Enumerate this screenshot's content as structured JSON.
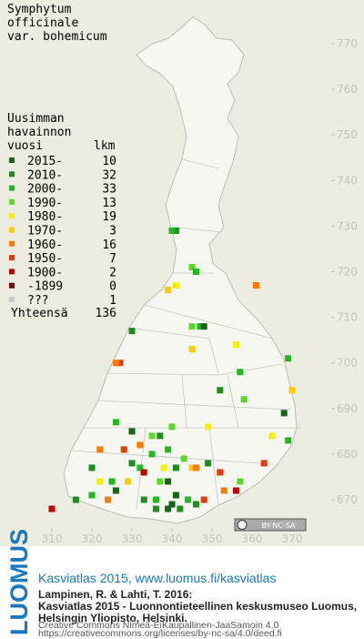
{
  "map": {
    "title": [
      "Symphytum",
      "officinale",
      "var. bohemicum"
    ],
    "legend_header": [
      "Uusimman",
      "havainnon"
    ],
    "legend_col_year": "vuosi",
    "legend_col_count": "lkm",
    "legend": [
      {
        "label": "2015-",
        "count": 10,
        "color": "#176317"
      },
      {
        "label": "2010-",
        "count": 32,
        "color": "#1e8c1e"
      },
      {
        "label": "2000-",
        "count": 33,
        "color": "#22b822"
      },
      {
        "label": "1990-",
        "count": 13,
        "color": "#5ad82a"
      },
      {
        "label": "1980-",
        "count": 19,
        "color": "#f2f200"
      },
      {
        "label": "1970-",
        "count": 3,
        "color": "#ffcc00"
      },
      {
        "label": "1960-",
        "count": 16,
        "color": "#ff7a00"
      },
      {
        "label": "1950-",
        "count": 7,
        "color": "#e83a00"
      },
      {
        "label": "1900-",
        "count": 2,
        "color": "#c00000"
      },
      {
        "label": "-1899",
        "count": 0,
        "color": "#7a0000"
      },
      {
        "label": "???",
        "count": 1,
        "color": "#cccccc"
      }
    ],
    "total_label": "Yhteensä",
    "total": 136,
    "xticks": [
      310,
      320,
      330,
      340,
      350,
      360,
      370
    ],
    "yticks": [
      770,
      760,
      750,
      740,
      730,
      720,
      710,
      700,
      690,
      680,
      670
    ],
    "xlim": [
      310,
      370
    ],
    "ylim": [
      670,
      770
    ],
    "points": [
      [
        341,
        729,
        1
      ],
      [
        340,
        729,
        2
      ],
      [
        345,
        721,
        3
      ],
      [
        346,
        720,
        2
      ],
      [
        361,
        717,
        6
      ],
      [
        341,
        717,
        4
      ],
      [
        339,
        716,
        5
      ],
      [
        330,
        707,
        1
      ],
      [
        345,
        708,
        3
      ],
      [
        347,
        708,
        2
      ],
      [
        348,
        708,
        0
      ],
      [
        356,
        704,
        4
      ],
      [
        345,
        703,
        5
      ],
      [
        327,
        700,
        7
      ],
      [
        326,
        700,
        6
      ],
      [
        357,
        698,
        2
      ],
      [
        352,
        694,
        1
      ],
      [
        358,
        692,
        3
      ],
      [
        370,
        694,
        5
      ],
      [
        369,
        701,
        2
      ],
      [
        368,
        689,
        0
      ],
      [
        369,
        683,
        2
      ],
      [
        326,
        687,
        2
      ],
      [
        330,
        685,
        0
      ],
      [
        335,
        684,
        3
      ],
      [
        340,
        686,
        3
      ],
      [
        349,
        686,
        4
      ],
      [
        322,
        681,
        6
      ],
      [
        328,
        681,
        7
      ],
      [
        332,
        682,
        6
      ],
      [
        337,
        684,
        1
      ],
      [
        339,
        681,
        2
      ],
      [
        330,
        678,
        1
      ],
      [
        332,
        677,
        2
      ],
      [
        338,
        677,
        4
      ],
      [
        341,
        677,
        1
      ],
      [
        345,
        677,
        5
      ],
      [
        346,
        677,
        6
      ],
      [
        349,
        678,
        1
      ],
      [
        352,
        676,
        7
      ],
      [
        320,
        677,
        1
      ],
      [
        325,
        674,
        2
      ],
      [
        329,
        674,
        5
      ],
      [
        333,
        676,
        8
      ],
      [
        337,
        674,
        3
      ],
      [
        339,
        674,
        0
      ],
      [
        341,
        671,
        0
      ],
      [
        340,
        669,
        0
      ],
      [
        342,
        668,
        1
      ],
      [
        344,
        670,
        2
      ],
      [
        346,
        669,
        1
      ],
      [
        348,
        670,
        7
      ],
      [
        353,
        672,
        6
      ],
      [
        356,
        672,
        8
      ],
      [
        357,
        674,
        3
      ],
      [
        363,
        678,
        7
      ],
      [
        365,
        684,
        4
      ],
      [
        324,
        670,
        6
      ],
      [
        326,
        672,
        0
      ],
      [
        316,
        670,
        1
      ],
      [
        320,
        671,
        2
      ],
      [
        310,
        668,
        8
      ],
      [
        333,
        670,
        1
      ],
      [
        336,
        670,
        2
      ],
      [
        339,
        668,
        0
      ],
      [
        336,
        668,
        1
      ],
      [
        322,
        674,
        4
      ],
      [
        335,
        680,
        2
      ],
      [
        343,
        679,
        3
      ]
    ],
    "cc_badge": "BY-NC-SA",
    "brand": "LUOMUS",
    "link": "Kasviatlas 2015, www.luomus.fi/kasviatlas",
    "reference": [
      "Lampinen, R. & Lahti, T. 2016:",
      "Kasviatlas 2015 - Luonnontieteellinen keskusmuseo Luomus,",
      "Helsingin Yliopisto, Helsinki."
    ],
    "license": [
      "Creative Commons Nimeä-EiKaupallinen-JaaSamoin 4.0",
      "https://creativecommons.org/licenses/by-nc-sa/4.0/deed.fi"
    ]
  }
}
